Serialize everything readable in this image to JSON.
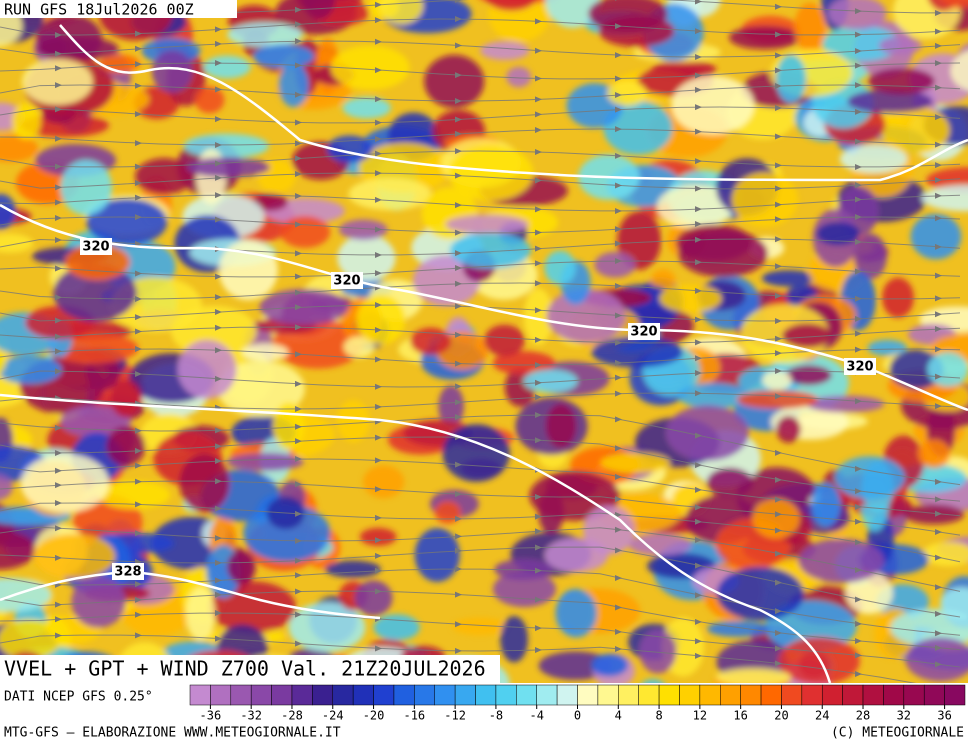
{
  "header": {
    "run": "RUN GFS 18Jul2026 00Z"
  },
  "map": {
    "contour_labels": [
      "320",
      "320",
      "320",
      "320",
      "328"
    ]
  },
  "title": "VVEL + GPT + WIND Z700 Val. 21Z20JUL2026",
  "source": "DATI NCEP GFS 0.25°",
  "colorbar": {
    "clim": [
      -38,
      38
    ],
    "ticks": [
      -36,
      -32,
      -28,
      -24,
      -20,
      -16,
      -12,
      -8,
      -4,
      0,
      4,
      8,
      12,
      16,
      20,
      24,
      28,
      32,
      36
    ],
    "colors": [
      "#c48ad0",
      "#b070c0",
      "#9a58b0",
      "#8a48a8",
      "#7a3aa0",
      "#5a2a98",
      "#3a2090",
      "#2828a0",
      "#2030b8",
      "#2040d0",
      "#2060e0",
      "#2878e8",
      "#3090f0",
      "#38a8f0",
      "#40c0f0",
      "#50d0f0",
      "#70e0f0",
      "#a0ecf0",
      "#d0f4f0",
      "#fffcc0",
      "#fff890",
      "#fff060",
      "#ffe830",
      "#ffe000",
      "#ffd000",
      "#ffb800",
      "#ffa000",
      "#ff8800",
      "#ff6800",
      "#f04a20",
      "#e03030",
      "#d02030",
      "#c01838",
      "#b01040",
      "#a00848",
      "#980850",
      "#900858",
      "#880860"
    ]
  },
  "footer": {
    "left": "MTG-GFS — ELABORAZIONE WWW.METEOGIORNALE.IT",
    "right": "(C) METEOGIORNALE"
  }
}
